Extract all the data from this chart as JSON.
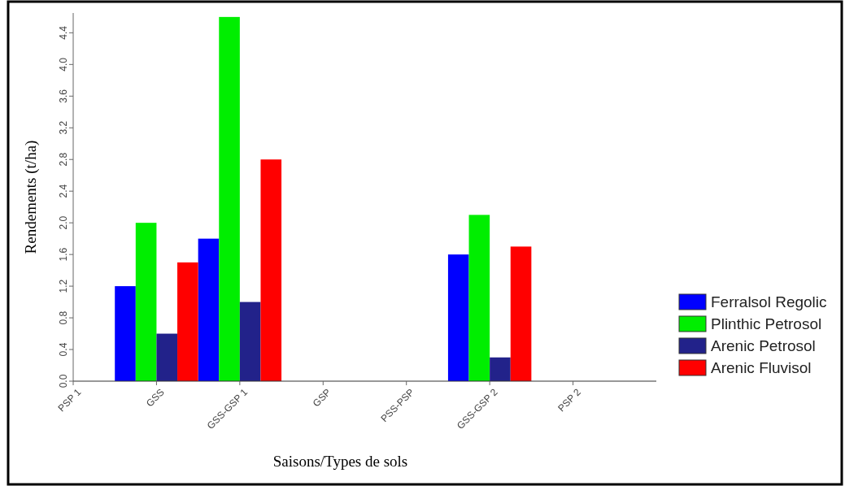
{
  "chart_data": {
    "type": "bar",
    "xlabel": "Saisons/Types de sols",
    "ylabel": "Rendements (t/ha)",
    "categories": [
      "PSP 1",
      "GSS",
      "GSS-GSP 1",
      "GSP",
      "PSS-PSP",
      "GSS-GSP 2",
      "PSP 2"
    ],
    "series": [
      {
        "name": "Ferralsol Regolic",
        "color": "#0000ff",
        "values": [
          null,
          1.2,
          1.8,
          null,
          null,
          1.6,
          null
        ]
      },
      {
        "name": "Plinthic Petrosol",
        "color": "#00ee00",
        "values": [
          null,
          2.0,
          4.6,
          null,
          null,
          2.1,
          null
        ]
      },
      {
        "name": "Arenic Petrosol",
        "color": "#22228a",
        "values": [
          null,
          0.6,
          1.0,
          null,
          null,
          0.3,
          null
        ]
      },
      {
        "name": "Arenic Fluvisol",
        "color": "#ff0000",
        "values": [
          null,
          1.5,
          2.8,
          null,
          null,
          1.7,
          null
        ]
      }
    ],
    "ylim": [
      0,
      4.65
    ],
    "yticks": [
      {
        "value": 0,
        "label": "0.0"
      },
      0.4,
      0.8,
      1.2,
      1.6,
      {
        "value": 2,
        "label": "2.0"
      },
      2.4,
      2.8,
      3.2,
      3.6,
      {
        "value": 4,
        "label": "4.0"
      },
      4.4
    ],
    "grid": false,
    "legend": "right"
  }
}
